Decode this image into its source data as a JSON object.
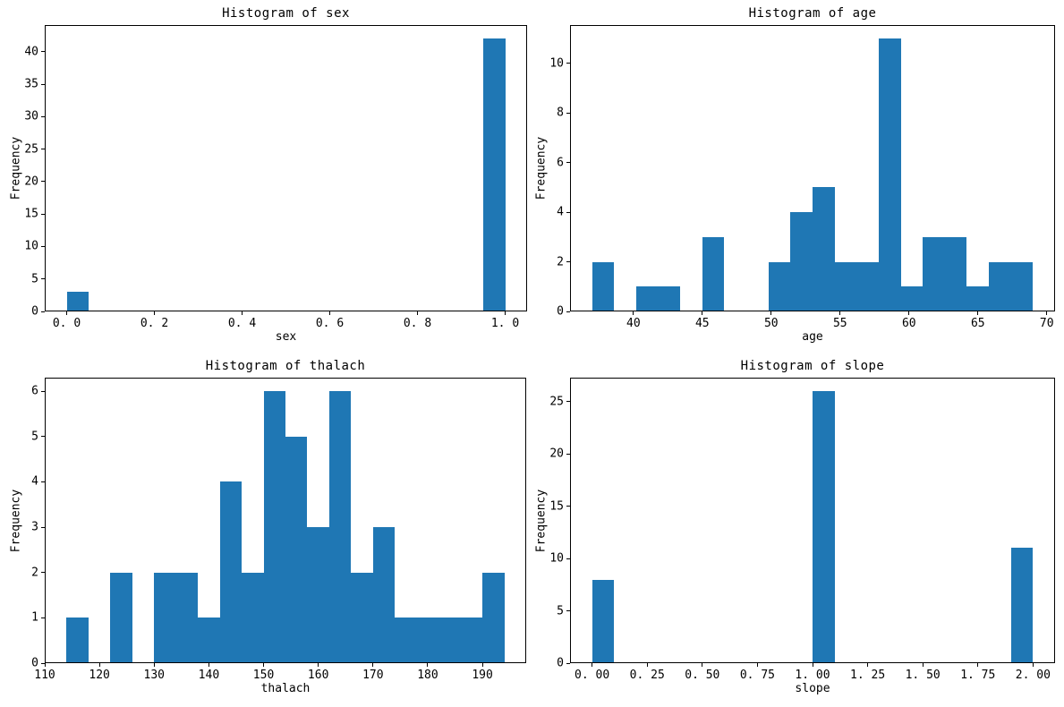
{
  "figure": {
    "background": "#ffffff",
    "axes_color": "#000000"
  },
  "chart_data": [
    {
      "type": "bar",
      "subtype": "histogram",
      "title": "Histogram of sex",
      "xlabel": "sex",
      "ylabel": "Frequency",
      "bar_color": "#1f77b4",
      "bin_start": 0.0,
      "bin_width": 0.05,
      "counts": [
        3,
        0,
        0,
        0,
        0,
        0,
        0,
        0,
        0,
        0,
        0,
        0,
        0,
        0,
        0,
        0,
        0,
        0,
        0,
        42
      ],
      "xlim": [
        -0.05,
        1.05
      ],
      "ylim": [
        0,
        44.1
      ],
      "grid": false,
      "legend": null,
      "xticks": [
        {
          "v": 0.0,
          "label": "0. 0"
        },
        {
          "v": 0.2,
          "label": "0. 2"
        },
        {
          "v": 0.4,
          "label": "0. 4"
        },
        {
          "v": 0.6,
          "label": "0. 6"
        },
        {
          "v": 0.8,
          "label": "0. 8"
        },
        {
          "v": 1.0,
          "label": "1. 0"
        }
      ],
      "yticks": [
        {
          "v": 0,
          "label": "0"
        },
        {
          "v": 5,
          "label": "5"
        },
        {
          "v": 10,
          "label": "10"
        },
        {
          "v": 15,
          "label": "15"
        },
        {
          "v": 20,
          "label": "20"
        },
        {
          "v": 25,
          "label": "25"
        },
        {
          "v": 30,
          "label": "30"
        },
        {
          "v": 35,
          "label": "35"
        },
        {
          "v": 40,
          "label": "40"
        }
      ]
    },
    {
      "type": "bar",
      "subtype": "histogram",
      "title": "Histogram of age",
      "xlabel": "age",
      "ylabel": "Frequency",
      "bar_color": "#1f77b4",
      "bin_start": 37.0,
      "bin_width": 1.6,
      "counts": [
        2,
        0,
        1,
        1,
        0,
        3,
        0,
        0,
        2,
        4,
        5,
        2,
        2,
        11,
        1,
        3,
        3,
        1,
        2,
        2
      ],
      "xlim": [
        35.4,
        70.6
      ],
      "ylim": [
        0,
        11.55
      ],
      "grid": false,
      "legend": null,
      "xticks": [
        {
          "v": 40,
          "label": "40"
        },
        {
          "v": 45,
          "label": "45"
        },
        {
          "v": 50,
          "label": "50"
        },
        {
          "v": 55,
          "label": "55"
        },
        {
          "v": 60,
          "label": "60"
        },
        {
          "v": 65,
          "label": "65"
        },
        {
          "v": 70,
          "label": "70"
        }
      ],
      "yticks": [
        {
          "v": 0,
          "label": "0"
        },
        {
          "v": 2,
          "label": "2"
        },
        {
          "v": 4,
          "label": "4"
        },
        {
          "v": 6,
          "label": "6"
        },
        {
          "v": 8,
          "label": "8"
        },
        {
          "v": 10,
          "label": "10"
        }
      ]
    },
    {
      "type": "bar",
      "subtype": "histogram",
      "title": "Histogram of thalach",
      "xlabel": "thalach",
      "ylabel": "Frequency",
      "bar_color": "#1f77b4",
      "bin_start": 114.0,
      "bin_width": 4.0,
      "counts": [
        1,
        0,
        2,
        0,
        2,
        2,
        1,
        4,
        2,
        6,
        5,
        3,
        6,
        2,
        3,
        1,
        1,
        1,
        1,
        2
      ],
      "xlim": [
        110,
        198
      ],
      "ylim": [
        0,
        6.3
      ],
      "grid": false,
      "legend": null,
      "xticks": [
        {
          "v": 110,
          "label": "110"
        },
        {
          "v": 120,
          "label": "120"
        },
        {
          "v": 130,
          "label": "130"
        },
        {
          "v": 140,
          "label": "140"
        },
        {
          "v": 150,
          "label": "150"
        },
        {
          "v": 160,
          "label": "160"
        },
        {
          "v": 170,
          "label": "170"
        },
        {
          "v": 180,
          "label": "180"
        },
        {
          "v": 190,
          "label": "190"
        }
      ],
      "yticks": [
        {
          "v": 0,
          "label": "0"
        },
        {
          "v": 1,
          "label": "1"
        },
        {
          "v": 2,
          "label": "2"
        },
        {
          "v": 3,
          "label": "3"
        },
        {
          "v": 4,
          "label": "4"
        },
        {
          "v": 5,
          "label": "5"
        },
        {
          "v": 6,
          "label": "6"
        }
      ]
    },
    {
      "type": "bar",
      "subtype": "histogram",
      "title": "Histogram of slope",
      "xlabel": "slope",
      "ylabel": "Frequency",
      "bar_color": "#1f77b4",
      "bin_start": 0.0,
      "bin_width": 0.1,
      "counts": [
        8,
        0,
        0,
        0,
        0,
        0,
        0,
        0,
        0,
        0,
        26,
        0,
        0,
        0,
        0,
        0,
        0,
        0,
        0,
        11
      ],
      "xlim": [
        -0.1,
        2.1
      ],
      "ylim": [
        0,
        27.3
      ],
      "grid": false,
      "legend": null,
      "xticks": [
        {
          "v": 0.0,
          "label": "0. 00"
        },
        {
          "v": 0.25,
          "label": "0. 25"
        },
        {
          "v": 0.5,
          "label": "0. 50"
        },
        {
          "v": 0.75,
          "label": "0. 75"
        },
        {
          "v": 1.0,
          "label": "1. 00"
        },
        {
          "v": 1.25,
          "label": "1. 25"
        },
        {
          "v": 1.5,
          "label": "1. 50"
        },
        {
          "v": 1.75,
          "label": "1. 75"
        },
        {
          "v": 2.0,
          "label": "2. 00"
        }
      ],
      "yticks": [
        {
          "v": 0,
          "label": "0"
        },
        {
          "v": 5,
          "label": "5"
        },
        {
          "v": 10,
          "label": "10"
        },
        {
          "v": 15,
          "label": "15"
        },
        {
          "v": 20,
          "label": "20"
        },
        {
          "v": 25,
          "label": "25"
        }
      ]
    }
  ]
}
